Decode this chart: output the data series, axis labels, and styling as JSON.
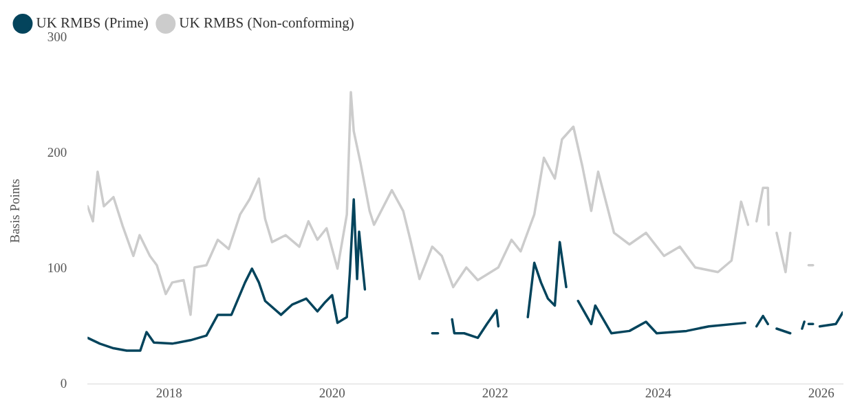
{
  "chart_data": {
    "type": "line",
    "ylabel": "Basis Points",
    "legend": "top left",
    "grid": false,
    "marker": "none",
    "line_style": "solid",
    "xlim": [
      "2017-01-01",
      "2026-04-07"
    ],
    "xticks": [
      "2018",
      "2020",
      "2022",
      "2024",
      "2026"
    ],
    "ylim": [
      0,
      300
    ],
    "yticks": [
      0,
      100,
      200,
      300
    ],
    "series": [
      {
        "name": "UK RMBS (Prime)",
        "color": "#04445c",
        "x": [
          "2017-01-01",
          "2017-02-25",
          "2017-04-27",
          "2017-06-25",
          "2017-08-25",
          "2017-09-22",
          "2017-10-25",
          "2018-01-15",
          "2018-04-07",
          "2018-06-17",
          "2018-08-07",
          "2018-10-07",
          "2018-12-07",
          "2019-01-07",
          "2019-02-07",
          "2019-03-07",
          "2019-05-17",
          "2019-07-07",
          "2019-09-07",
          "2019-10-27",
          "2019-12-01",
          "2020-01-01",
          "2020-01-25",
          "2020-03-07",
          "2020-03-20",
          "2020-04-07",
          "2020-04-22",
          "2020-05-01",
          "2020-05-27",
          "2020-09-01",
          "2021-03-25",
          "2021-04-20",
          "2021-05-10",
          "2021-06-22",
          "2021-07-02",
          "2021-08-15",
          "2021-10-15",
          "2021-11-25",
          "2022-01-07",
          "2022-01-15",
          "2022-03-01",
          "2022-05-27",
          "2022-06-25",
          "2022-07-25",
          "2022-08-25",
          "2022-09-25",
          "2022-10-17",
          "2022-11-15",
          "2022-12-15",
          "2023-01-07",
          "2023-03-07",
          "2023-03-25",
          "2023-06-05",
          "2023-08-25",
          "2023-11-07",
          "2023-12-25",
          "2024-05-07",
          "2024-08-15",
          "2025-01-25",
          "2025-02-15",
          "2025-03-17",
          "2025-04-15",
          "2025-05-07",
          "2025-05-20",
          "2025-06-15",
          "2025-08-15",
          "2025-09-15",
          "2025-10-07",
          "2025-10-17",
          "2025-10-25",
          "2025-11-05",
          "2025-11-25",
          "2025-12-10",
          "2025-12-25",
          "2026-03-07",
          "2026-04-07"
        ],
        "values": [
          40,
          35,
          31,
          29,
          29,
          45,
          36,
          35,
          38,
          42,
          60,
          60,
          88,
          100,
          88,
          72,
          60,
          69,
          74,
          63,
          71,
          77,
          53,
          58,
          95,
          160,
          91,
          132,
          82,
          null,
          44,
          44,
          null,
          56,
          44,
          44,
          40,
          52,
          64,
          50,
          null,
          58,
          105,
          88,
          74,
          68,
          123,
          84,
          null,
          72,
          52,
          68,
          44,
          46,
          54,
          44,
          46,
          50,
          53,
          null,
          50,
          59,
          52,
          null,
          48,
          44,
          null,
          48,
          54,
          null,
          52,
          52,
          null,
          50,
          52,
          62
        ]
      },
      {
        "name": "UK RMBS (Non-conforming)",
        "color": "#cccccc",
        "x": [
          "2017-01-01",
          "2017-01-25",
          "2017-02-15",
          "2017-03-15",
          "2017-04-27",
          "2017-06-07",
          "2017-07-25",
          "2017-08-22",
          "2017-10-07",
          "2017-11-07",
          "2017-12-17",
          "2018-01-15",
          "2018-03-07",
          "2018-04-07",
          "2018-04-25",
          "2018-06-17",
          "2018-08-07",
          "2018-09-25",
          "2018-11-15",
          "2018-12-27",
          "2019-02-07",
          "2019-03-07",
          "2019-04-07",
          "2019-06-07",
          "2019-08-07",
          "2019-09-17",
          "2019-10-27",
          "2019-12-07",
          "2020-01-25",
          "2020-03-07",
          "2020-03-25",
          "2020-04-07",
          "2020-05-07",
          "2020-06-17",
          "2020-07-07",
          "2020-09-25",
          "2020-11-15",
          "2020-12-17",
          "2021-01-27",
          "2021-03-25",
          "2021-05-07",
          "2021-06-27",
          "2021-08-25",
          "2021-10-15",
          "2022-01-15",
          "2022-03-15",
          "2022-04-25",
          "2022-06-25",
          "2022-08-07",
          "2022-09-25",
          "2022-10-27",
          "2022-12-17",
          "2023-01-27",
          "2023-03-07",
          "2023-04-07",
          "2023-06-17",
          "2023-08-25",
          "2023-11-07",
          "2024-01-27",
          "2024-04-07",
          "2024-06-15",
          "2024-09-25",
          "2024-11-25",
          "2025-01-07",
          "2025-02-07",
          "2025-02-20",
          "2025-03-17",
          "2025-04-15",
          "2025-05-07",
          "2025-05-10",
          "2025-05-25",
          "2025-06-15",
          "2025-07-25",
          "2025-08-15",
          "2025-09-15",
          "2025-11-05",
          "2025-11-25"
        ],
        "values": [
          154,
          141,
          184,
          154,
          162,
          137,
          111,
          129,
          111,
          103,
          78,
          88,
          90,
          60,
          101,
          103,
          125,
          117,
          147,
          160,
          178,
          143,
          123,
          129,
          119,
          141,
          125,
          135,
          100,
          147,
          253,
          219,
          192,
          150,
          138,
          168,
          150,
          125,
          91,
          119,
          111,
          84,
          101,
          90,
          101,
          125,
          115,
          147,
          196,
          178,
          212,
          223,
          188,
          150,
          184,
          131,
          121,
          131,
          111,
          119,
          101,
          97,
          107,
          158,
          138,
          null,
          141,
          170,
          170,
          138,
          null,
          131,
          97,
          131,
          null,
          103,
          103
        ]
      }
    ]
  }
}
